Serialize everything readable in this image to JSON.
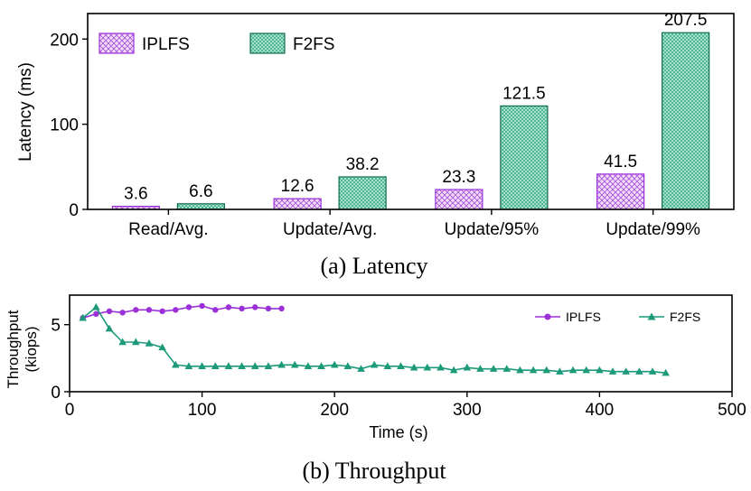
{
  "colors": {
    "iplfs": "#9b30d9",
    "f2fs": "#1c9a7a",
    "iplfs_fill": "#e8c8f6",
    "f2fs_fill": "#6cc9a8"
  },
  "chart_data": [
    {
      "type": "bar",
      "caption": "(a) Latency",
      "ylabel": "Latency (ms)",
      "xlabel": "",
      "ylim": [
        0,
        230
      ],
      "yticks": [
        0,
        100,
        200
      ],
      "categories": [
        "Read/Avg.",
        "Update/Avg.",
        "Update/95%",
        "Update/99%"
      ],
      "series": [
        {
          "name": "IPLFS",
          "values": [
            3.6,
            12.6,
            23.3,
            41.5
          ],
          "labels": [
            "3.6",
            "12.6",
            "23.3",
            "41.5"
          ]
        },
        {
          "name": "F2FS",
          "values": [
            6.6,
            38.2,
            121.5,
            207.5
          ],
          "labels": [
            "6.6",
            "38.2",
            "121.5",
            "207.5"
          ]
        }
      ],
      "legend": "top-left"
    },
    {
      "type": "line",
      "caption": "(b) Throughput",
      "ylabel_line1": "Throughput",
      "ylabel_line2": "(kiops)",
      "xlabel": "Time (s)",
      "xlim": [
        0,
        500
      ],
      "ylim": [
        0,
        7.2
      ],
      "xticks": [
        0,
        100,
        200,
        300,
        400,
        500
      ],
      "yticks": [
        0,
        5
      ],
      "legend": "top-right",
      "series": [
        {
          "name": "IPLFS",
          "marker": "circle",
          "x": [
            10,
            20,
            30,
            40,
            50,
            60,
            70,
            80,
            90,
            100,
            110,
            120,
            130,
            140,
            150,
            160
          ],
          "y": [
            5.5,
            5.8,
            6.0,
            5.9,
            6.1,
            6.1,
            6.0,
            6.1,
            6.3,
            6.4,
            6.1,
            6.3,
            6.2,
            6.3,
            6.2,
            6.2
          ]
        },
        {
          "name": "F2FS",
          "marker": "triangle",
          "x": [
            10,
            20,
            30,
            40,
            50,
            60,
            70,
            80,
            90,
            100,
            110,
            120,
            130,
            140,
            150,
            160,
            170,
            180,
            190,
            200,
            210,
            220,
            230,
            240,
            250,
            260,
            270,
            280,
            290,
            300,
            310,
            320,
            330,
            340,
            350,
            360,
            370,
            380,
            390,
            400,
            410,
            420,
            430,
            440,
            450
          ],
          "y": [
            5.5,
            6.3,
            4.7,
            3.7,
            3.7,
            3.6,
            3.3,
            2.0,
            1.9,
            1.9,
            1.9,
            1.9,
            1.9,
            1.9,
            1.9,
            2.0,
            2.0,
            1.9,
            1.9,
            2.0,
            1.9,
            1.7,
            2.0,
            1.9,
            1.9,
            1.8,
            1.8,
            1.8,
            1.6,
            1.8,
            1.7,
            1.7,
            1.7,
            1.6,
            1.6,
            1.6,
            1.5,
            1.6,
            1.6,
            1.6,
            1.5,
            1.5,
            1.5,
            1.5,
            1.4
          ]
        }
      ]
    }
  ]
}
